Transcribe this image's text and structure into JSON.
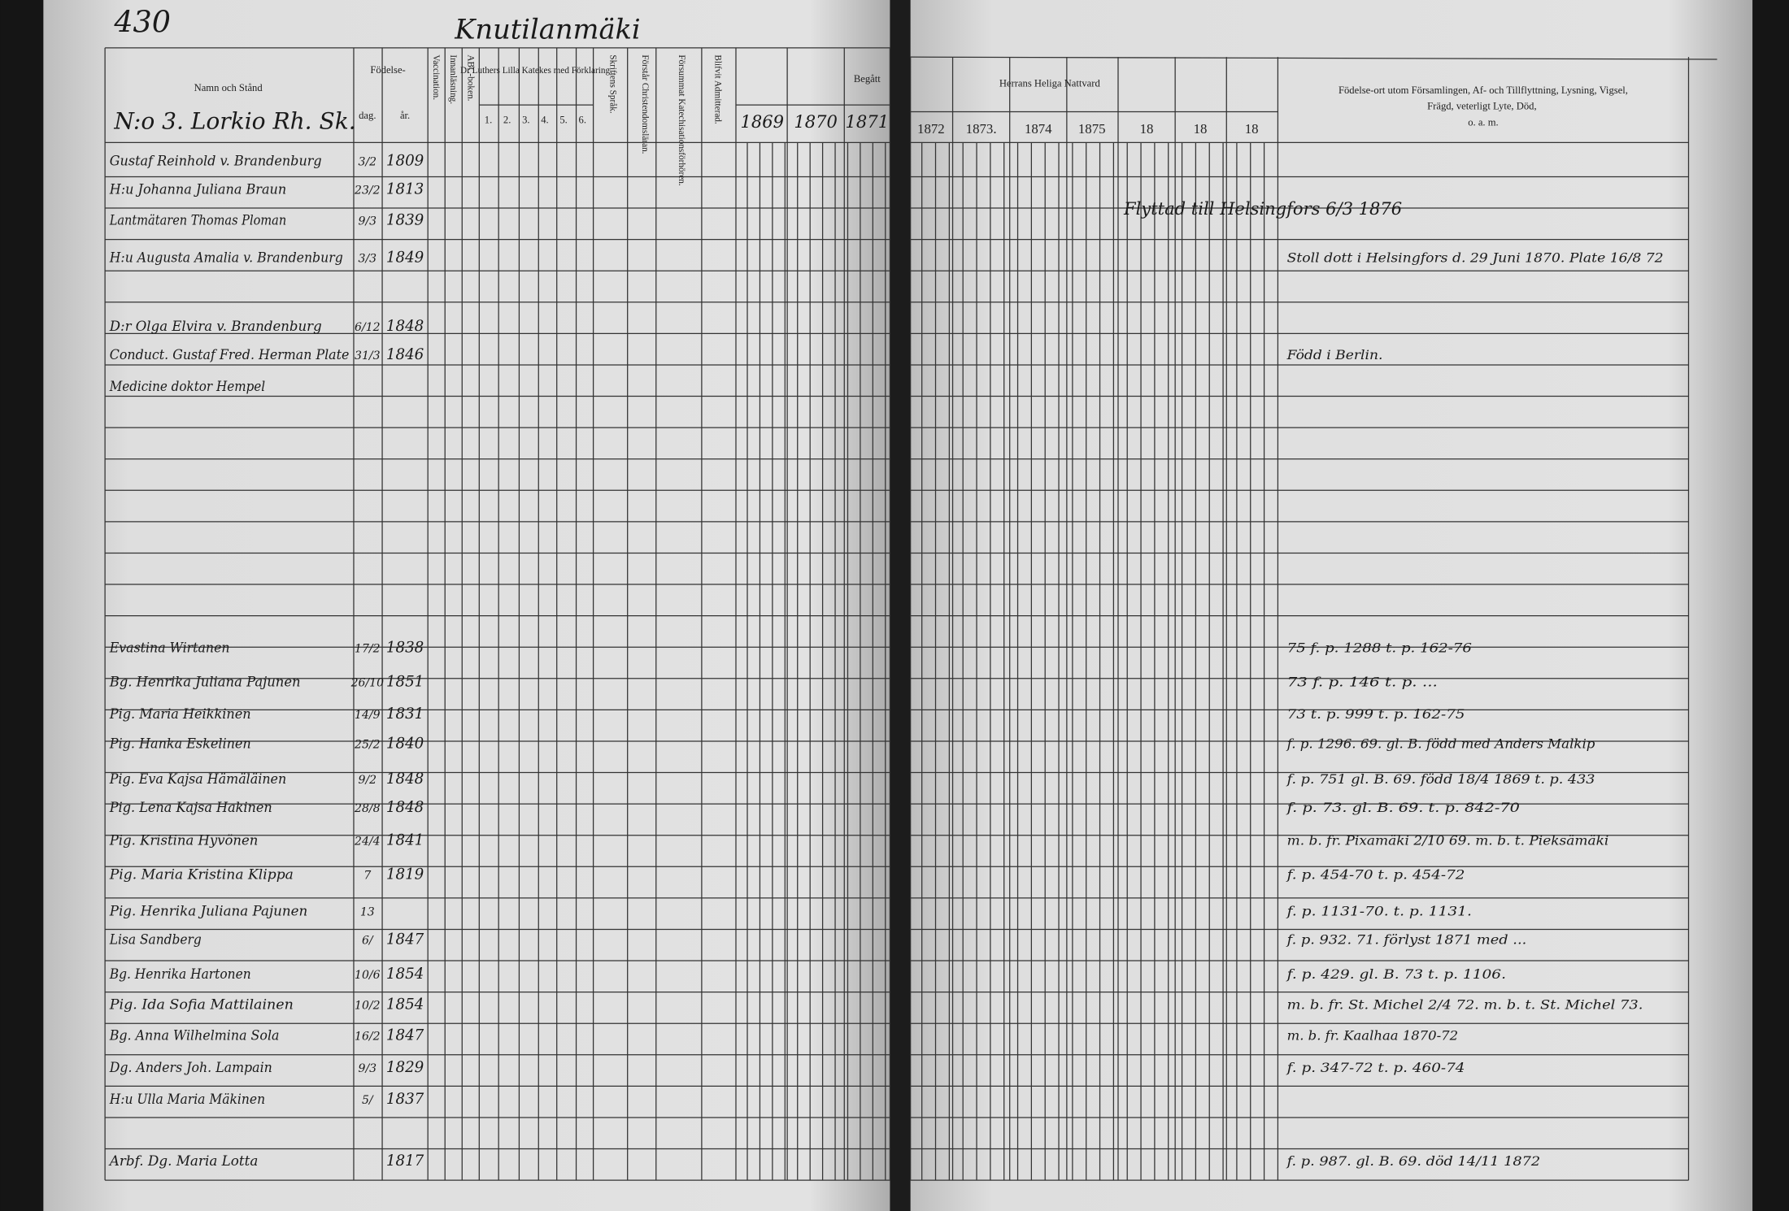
{
  "header": {
    "page_number": "430",
    "village": "Knutilanmäki",
    "household": "N:o 3. Lorkio Rh. Sk."
  },
  "columns": {
    "name": "Namn och Stånd",
    "birth": "Födelse-",
    "day": "dag.",
    "year": "år.",
    "vaccination": "Vaccination.",
    "reading": "Innanläsning.",
    "abc": "ABC-boken.",
    "catechism": "Dr Luthers Lilla Katekes med Förklaring.",
    "catechism_parts": [
      "1.",
      "2.",
      "3.",
      "4.",
      "5.",
      "6."
    ],
    "scripture": "Skriftens Språk.",
    "doctrine": "Förstår Christendomsläran.",
    "missed": "Försummat Katechisationsförhören.",
    "admitted": "Blifvit Admitterad.",
    "communion_left": "Begått",
    "years_left": [
      "1869",
      "1870",
      "1871"
    ],
    "communion_right": "Herrans Heliga Nattvard",
    "years_right": [
      "1872",
      "1873.",
      "1874",
      "1875",
      "18",
      "18",
      "18"
    ],
    "notes": "Födelse-ort utom Församlingen, Af- och Tillflyttning, Lysning, Vigsel, Frägd, veterligt Lyte, Död, o. a. m."
  },
  "rows": [
    {
      "name": "Gustaf Reinhold v. Brandenburg",
      "day": "3/2",
      "year": "1809",
      "note": ""
    },
    {
      "name": "H:u Johanna Juliana Braun",
      "day": "23/2",
      "year": "1813",
      "note": ""
    },
    {
      "name": "Lantmätaren Thomas Ploman",
      "day": "9/3",
      "year": "1839",
      "note": ""
    },
    {
      "name": "H:u Augusta Amalia v. Brandenburg",
      "day": "3/3",
      "year": "1849",
      "note": "Stoll dott i Helsingfors d. 29 Juni 1870. Plate 16/8 72"
    },
    {
      "name": "D:r Olga Elvira v. Brandenburg",
      "day": "6/12",
      "year": "1848",
      "note": ""
    },
    {
      "name": "Conduct. Gustaf Fred. Herman Plate",
      "day": "31/3",
      "year": "1846",
      "note": "Född i Berlin."
    },
    {
      "name": "Medicine doktor Hempel",
      "day": "",
      "year": "",
      "note": ""
    },
    {
      "name": "Evastina Wirtanen",
      "day": "17/2",
      "year": "1838",
      "note": "75 f. p. 1288  t. p. 162-76"
    },
    {
      "name": "Bg. Henrika Juliana Pajunen",
      "day": "26/10",
      "year": "1851",
      "note": "73 f. p. 146 t. p. ..."
    },
    {
      "name": "Pig. Maria Heikkinen",
      "day": "14/9",
      "year": "1831",
      "note": "73 t. p. 999  t. p. 162-75"
    },
    {
      "name": "Pig. Hanka Eskelinen",
      "day": "25/2",
      "year": "1840",
      "note": "f. p. 1296. 69. gl. B. född med Anders Malkip"
    },
    {
      "name": "Pig. Eva Kajsa Hämäläinen",
      "day": "9/2",
      "year": "1848",
      "note": "f. p. 751 gl. B. 69. född 18/4 1869 t. p. 433"
    },
    {
      "name": "Pig. Lena Kajsa Hakinen",
      "day": "28/8",
      "year": "1848",
      "note": "f. p. 73. gl. B. 69.  t. p. 842-70"
    },
    {
      "name": "Pig. Kristina Hyvönen",
      "day": "24/4",
      "year": "1841",
      "note": "m. b. fr. Pixamäki 2/10 69. m. b. t. Pieksämäki"
    },
    {
      "name": "Pig. Maria Kristina Klippa",
      "day": "7",
      "year": "1819",
      "note": "f. p. 454-70  t. p. 454-72"
    },
    {
      "name": "Pig. Henrika Juliana Pajunen",
      "day": "13",
      "year": "",
      "note": "f. p. 1131-70.  t. p. 1131."
    },
    {
      "name": "Lisa Sandberg",
      "day": "6/",
      "year": "1847",
      "note": "f. p. 932. 71. förlyst 1871 med ..."
    },
    {
      "name": "Bg. Henrika Hartonen",
      "day": "10/6",
      "year": "1854",
      "note": "f. p. 429. gl. B. 73 t. p. 1106."
    },
    {
      "name": "Pig. Ida Sofia Mattilainen",
      "day": "10/2",
      "year": "1854",
      "note": "m. b. fr. St. Michel 2/4 72. m. b. t. St. Michel 73."
    },
    {
      "name": "Bg. Anna Wilhelmina Sola",
      "day": "16/2",
      "year": "1847",
      "note": "m. b. fr. Kaalhaa 1870-72"
    },
    {
      "name": "Dg. Anders Joh. Lampain",
      "day": "9/3",
      "year": "1829",
      "note": "f. p. 347-72  t. p. 460-74"
    },
    {
      "name": "H:u Ulla Maria Mäkinen",
      "day": "5/",
      "year": "1837",
      "note": ""
    },
    {
      "name": "Arbf. Dg. Maria Lotta",
      "day": "",
      "year": "1817",
      "note": "f. p. 987. gl. B. 69.  död 14/11 1872"
    }
  ],
  "moved_note": "Flyttad till Helsingfors 6/3 1876"
}
